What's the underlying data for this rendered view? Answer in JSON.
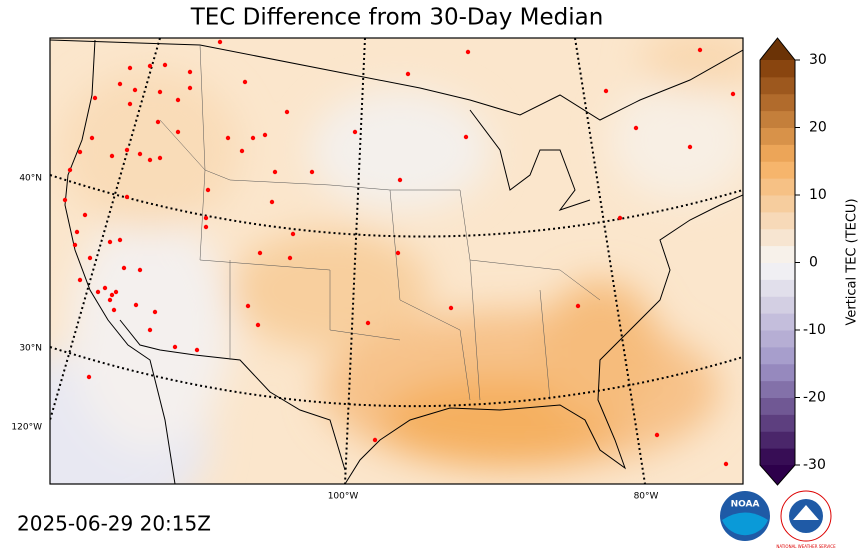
{
  "title": "TEC Difference from 30-Day Median",
  "colorbar": {
    "label": "Vertical TEC (TECU)",
    "lim": [
      -30,
      30
    ],
    "ticks": [
      30,
      20,
      10,
      0,
      -10,
      -20,
      -30
    ]
  },
  "graticule": {
    "lat_labels": [
      "40°N",
      "30°N"
    ],
    "lon_labels": [
      "120°W",
      "100°W",
      "80°W"
    ]
  },
  "timestamp": "2025-06-29 20:15Z",
  "logos": {
    "noaa": "NOAA",
    "nws": "NATIONAL WEATHER SERVICE"
  }
}
